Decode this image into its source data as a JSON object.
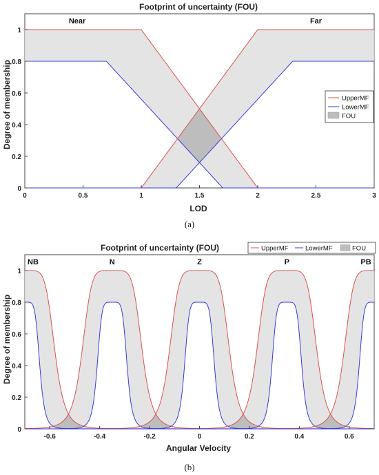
{
  "colors": {
    "upper": "#d9534f",
    "lower": "#3b3bd9",
    "fou_fill": "#e4e4e4",
    "fou_overlap": "#bdbdbd",
    "fou_edge": "#999999",
    "axis": "#444444"
  },
  "captions": [
    "(a)",
    "(b)"
  ],
  "chart_data": [
    {
      "type": "area",
      "title": "Footprint of uncertainty (FOU)",
      "xlabel": "LOD",
      "ylabel": "Degree of membership",
      "xlim": [
        0,
        3
      ],
      "ylim": [
        0,
        1.1
      ],
      "xticks": [
        0,
        0.5,
        1,
        1.5,
        2,
        2.5,
        3
      ],
      "xtick_labels": [
        "0",
        "0.5",
        "1",
        "1.5",
        "2",
        "2.5",
        "3"
      ],
      "yticks": [
        0,
        0.2,
        0.4,
        0.6,
        0.8,
        1
      ],
      "ytick_labels": [
        "0",
        "0.2",
        "0.4",
        "0.6",
        "0.8",
        "1"
      ],
      "legend": {
        "position": "right",
        "entries": [
          "UpperMF",
          "LowerMF",
          "FOU"
        ]
      },
      "membership_functions": [
        {
          "label": "Near",
          "label_x": 0.45,
          "upper": {
            "x": [
              0,
              1,
              2
            ],
            "y": [
              1,
              1,
              0
            ]
          },
          "lower": {
            "x": [
              0,
              0.7,
              1.7
            ],
            "y": [
              0.8,
              0.8,
              0
            ]
          }
        },
        {
          "label": "Far",
          "label_x": 2.5,
          "upper": {
            "x": [
              1,
              2,
              3
            ],
            "y": [
              0,
              1,
              1
            ]
          },
          "lower": {
            "x": [
              1.3,
              2.3,
              3
            ],
            "y": [
              0,
              0.8,
              0.8
            ]
          }
        }
      ]
    },
    {
      "type": "area",
      "title": "Footprint of uncertainty (FOU)",
      "xlabel": "Angular Velocity",
      "ylabel": "Degree of membership",
      "xlim": [
        -0.7,
        0.7
      ],
      "ylim": [
        0,
        1.1
      ],
      "xticks": [
        -0.6,
        -0.4,
        -0.2,
        0,
        0.2,
        0.4,
        0.6
      ],
      "xtick_labels": [
        "-0.6",
        "-0.4",
        "-0.2",
        "0",
        "0.2",
        "0.4",
        "0.6"
      ],
      "yticks": [
        0,
        0.2,
        0.4,
        0.6,
        0.8,
        1
      ],
      "ytick_labels": [
        "0",
        "0.2",
        "0.4",
        "0.6",
        "0.8",
        "1"
      ],
      "legend": {
        "position": "top-right",
        "entries": [
          "UpperMF",
          "LowerMF",
          "FOU"
        ]
      },
      "mf_shape": "generalized-bell",
      "upper_params": {
        "a": 0.12,
        "b": 3,
        "height": 1
      },
      "lower_params": {
        "a": 0.06,
        "b": 3,
        "height": 0.8
      },
      "membership_functions": [
        {
          "label": "NB",
          "center": -0.7
        },
        {
          "label": "N",
          "center": -0.35
        },
        {
          "label": "Z",
          "center": 0
        },
        {
          "label": "P",
          "center": 0.35
        },
        {
          "label": "PB",
          "center": 0.7
        }
      ]
    }
  ]
}
